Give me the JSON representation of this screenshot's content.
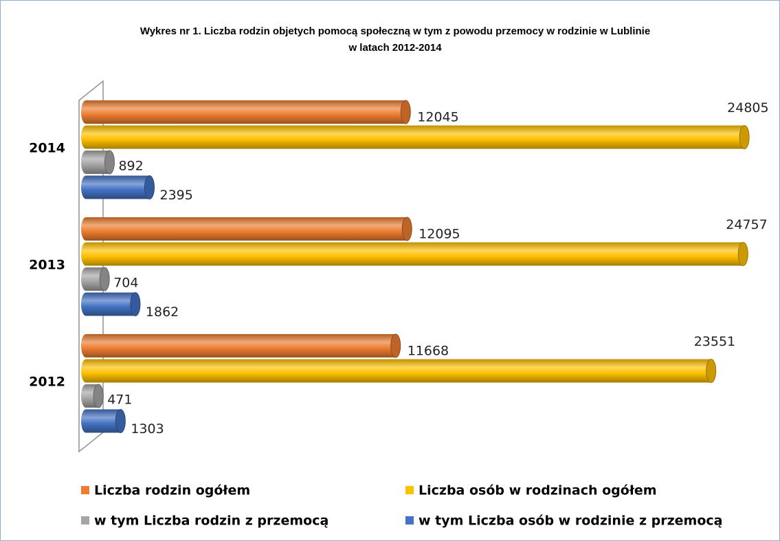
{
  "chart_data": {
    "type": "bar",
    "orientation": "horizontal",
    "title": [
      "Wykres nr 1. Liczba rodzin objetych pomocą społeczną w tym z powodu przemocy w rodzinie w Lublinie",
      "w latach 2012-2014"
    ],
    "categories": [
      "2012",
      "2013",
      "2014"
    ],
    "xlim": [
      0,
      25500
    ],
    "series": [
      {
        "name": "Liczba rodzin ogółem",
        "color": "#ed7d31",
        "values": [
          11668,
          12095,
          12045
        ]
      },
      {
        "name": "Liczba osób w rodzinach ogółem",
        "color": "#ffc000",
        "values": [
          23551,
          24757,
          24805
        ]
      },
      {
        "name": "w tym Liczba rodzin z przemocą",
        "color": "#a5a5a5",
        "values": [
          471,
          704,
          892
        ]
      },
      {
        "name": "w tym Liczba osób w rodzinie z przemocą",
        "color": "#4472c4",
        "values": [
          1303,
          1862,
          2395
        ]
      }
    ]
  }
}
